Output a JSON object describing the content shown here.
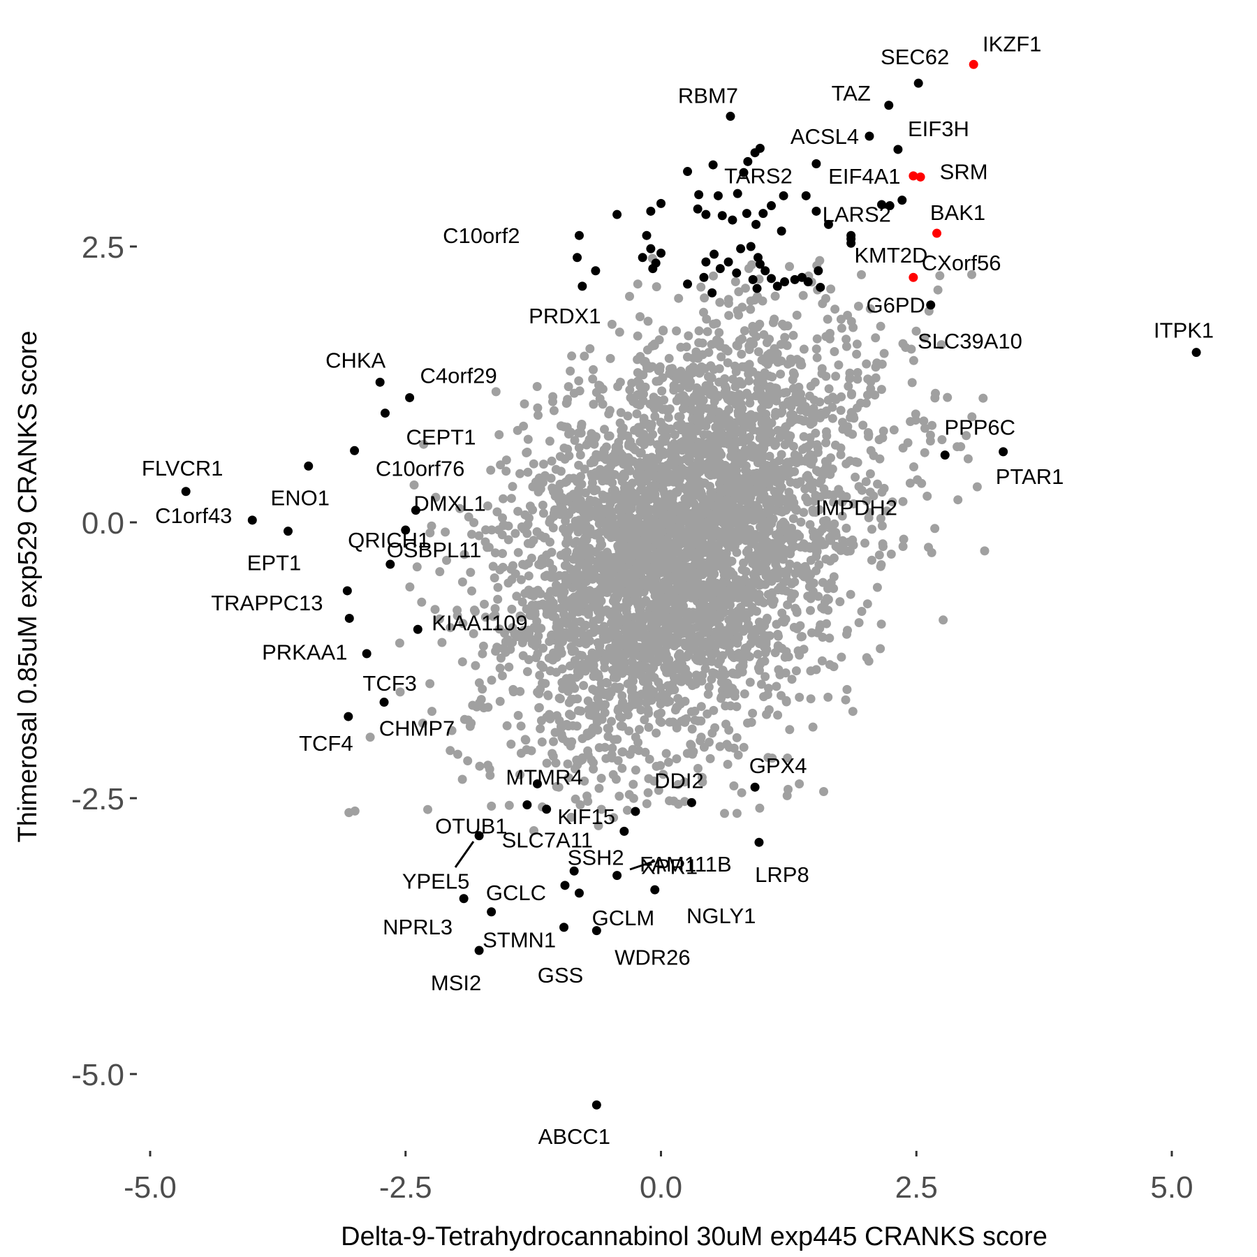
{
  "chart_data": {
    "type": "scatter",
    "title": "",
    "xlabel": "Delta-9-Tetrahydrocannabinol 30uM exp445 CRANKS score",
    "ylabel": "Thimerosal 0.85uM exp529 CRANKS score",
    "xlim": [
      -5.1,
      5.4
    ],
    "ylim": [
      -5.7,
      3.6
    ],
    "xticks": [
      -5.0,
      -2.5,
      0.0,
      2.5,
      5.0
    ],
    "xtick_labels": [
      "-5.0",
      "-2.5",
      "0.0",
      "2.5",
      "5.0"
    ],
    "yticks": [
      2.5,
      0.0,
      -2.5,
      -5.0
    ],
    "ytick_labels": [
      "2.5",
      "0.0",
      "-2.5",
      "-5.0"
    ],
    "grid": false,
    "legend": "none",
    "colors": {
      "background": "#gray-cloud",
      "cloud": "#a0a0a0",
      "highlight": "#000000",
      "special": "#ff0000",
      "tick_text": "#4d4d4d"
    },
    "labeled_points": [
      {
        "label": "IKZF1",
        "x": 3.06,
        "y": 4.15,
        "color": "#ff0000"
      },
      {
        "label": "SEC62",
        "x": 2.52,
        "y": 3.98,
        "color": "#000000"
      },
      {
        "label": "TAZ",
        "x": 2.23,
        "y": 3.78,
        "color": "#000000"
      },
      {
        "label": "RBM7",
        "x": 0.68,
        "y": 3.68,
        "color": "#000000"
      },
      {
        "label": "ACSL4",
        "x": 2.04,
        "y": 3.5,
        "color": "#000000"
      },
      {
        "label": "EIF3H",
        "x": 2.32,
        "y": 3.38,
        "color": "#000000"
      },
      {
        "label": "SRM",
        "x": 2.54,
        "y": 3.13,
        "color": "#ff0000"
      },
      {
        "label": "EIF4A1",
        "x": 2.47,
        "y": 3.14,
        "color": "#ff0000"
      },
      {
        "label": "TARS2",
        "x": 1.52,
        "y": 3.25,
        "color": "#000000"
      },
      {
        "label": "LARS2",
        "x": 2.36,
        "y": 2.92,
        "color": "#000000"
      },
      {
        "label": "BAK1",
        "x": 2.7,
        "y": 2.62,
        "color": "#ff0000"
      },
      {
        "label": "CXorf56",
        "x": 1.86,
        "y": 2.57,
        "color": "#000000"
      },
      {
        "label": "KMT2D",
        "x": 2.47,
        "y": 2.22,
        "color": "#ff0000"
      },
      {
        "label": "C10orf2",
        "x": -0.8,
        "y": 2.6,
        "color": "#000000"
      },
      {
        "label": "G6PD",
        "x": 2.64,
        "y": 1.97,
        "color": "#000000"
      },
      {
        "label": "PRDX1",
        "x": -0.77,
        "y": 2.14,
        "color": "#000000"
      },
      {
        "label": "SLC39A10",
        "x": 2.45,
        "y": 1.57,
        "color": "#a0a0a0"
      },
      {
        "label": "ITPK1",
        "x": 5.24,
        "y": 1.54,
        "color": "#000000"
      },
      {
        "label": "CHKA",
        "x": -2.75,
        "y": 1.27,
        "color": "#000000"
      },
      {
        "label": "C4orf29",
        "x": -2.46,
        "y": 1.13,
        "color": "#000000"
      },
      {
        "label": "CEPT1",
        "x": -2.7,
        "y": 0.99,
        "color": "#000000"
      },
      {
        "label": "PPP6C",
        "x": 2.78,
        "y": 0.61,
        "color": "#000000"
      },
      {
        "label": "PTAR1",
        "x": 3.35,
        "y": 0.64,
        "color": "#000000"
      },
      {
        "label": "IMPDH2",
        "x": 2.05,
        "y": 0.44,
        "color": "#a0a0a0"
      },
      {
        "label": "C10orf76",
        "x": -3.0,
        "y": 0.65,
        "color": "#000000"
      },
      {
        "label": "FLVCR1",
        "x": -4.65,
        "y": 0.28,
        "color": "#000000"
      },
      {
        "label": "ENO1",
        "x": -3.45,
        "y": 0.51,
        "color": "#000000"
      },
      {
        "label": "C1orf43",
        "x": -4.0,
        "y": 0.02,
        "color": "#000000"
      },
      {
        "label": "EPT1",
        "x": -3.65,
        "y": -0.08,
        "color": "#000000"
      },
      {
        "label": "DMXL1",
        "x": -2.4,
        "y": 0.11,
        "color": "#000000"
      },
      {
        "label": "QRICH1",
        "x": -2.5,
        "y": -0.07,
        "color": "#000000"
      },
      {
        "label": "OSBPL11",
        "x": -2.65,
        "y": -0.38,
        "color": "#000000"
      },
      {
        "label": "TRAPPC13",
        "x": -3.07,
        "y": -0.62,
        "color": "#000000"
      },
      {
        "label": "PRKAA1",
        "x": -3.05,
        "y": -0.87,
        "color": "#000000"
      },
      {
        "label": "KIAA1109",
        "x": -2.38,
        "y": -0.97,
        "color": "#000000"
      },
      {
        "label": "TCF3",
        "x": -2.88,
        "y": -1.19,
        "color": "#000000"
      },
      {
        "label": "CHMP7",
        "x": -2.71,
        "y": -1.63,
        "color": "#000000"
      },
      {
        "label": "TCF4",
        "x": -3.06,
        "y": -1.76,
        "color": "#000000"
      },
      {
        "label": "MTMR4",
        "x": -1.21,
        "y": -2.37,
        "color": "#000000"
      },
      {
        "label": "GPX4",
        "x": 0.92,
        "y": -2.4,
        "color": "#000000"
      },
      {
        "label": "DDI2",
        "x": 0.3,
        "y": -2.54,
        "color": "#000000"
      },
      {
        "label": "OTUB1",
        "x": -1.31,
        "y": -2.56,
        "color": "#000000"
      },
      {
        "label": "KIF15",
        "x": -1.12,
        "y": -2.6,
        "color": "#000000"
      },
      {
        "label": "FAM111B",
        "x": -0.25,
        "y": -2.62,
        "color": "#000000"
      },
      {
        "label": "SLC7A11",
        "x": -0.36,
        "y": -2.8,
        "color": "#000000"
      },
      {
        "label": "LRP8",
        "x": 0.96,
        "y": -2.9,
        "color": "#000000"
      },
      {
        "label": "YPEL5",
        "x": -1.78,
        "y": -2.84,
        "color": "#000000"
      },
      {
        "label": "SSH2",
        "x": -0.85,
        "y": -3.16,
        "color": "#000000"
      },
      {
        "label": "XPR1",
        "x": -0.43,
        "y": -3.2,
        "color": "#000000"
      },
      {
        "label": "GCLC",
        "x": -0.94,
        "y": -3.29,
        "color": "#000000"
      },
      {
        "label": "GCLM",
        "x": -0.8,
        "y": -3.36,
        "color": "#000000"
      },
      {
        "label": "NGLY1",
        "x": -0.06,
        "y": -3.33,
        "color": "#000000"
      },
      {
        "label": "NPRL3",
        "x": -1.93,
        "y": -3.41,
        "color": "#000000"
      },
      {
        "label": "STMN1",
        "x": -1.66,
        "y": -3.53,
        "color": "#000000"
      },
      {
        "label": "GSS",
        "x": -0.95,
        "y": -3.67,
        "color": "#000000"
      },
      {
        "label": "WDR26",
        "x": -0.63,
        "y": -3.7,
        "color": "#000000"
      },
      {
        "label": "MSI2",
        "x": -1.78,
        "y": -3.88,
        "color": "#000000"
      },
      {
        "label": "ABCC1",
        "x": -0.63,
        "y": -5.28,
        "color": "#000000"
      }
    ],
    "unlabeled_black_points": [
      [
        0.26,
        3.18
      ],
      [
        0.51,
        3.24
      ],
      [
        0.85,
        3.27
      ],
      [
        0.92,
        3.35
      ],
      [
        0.97,
        3.39
      ],
      [
        0.81,
        3.17
      ],
      [
        0.37,
        2.97
      ],
      [
        0.56,
        2.96
      ],
      [
        0.75,
        2.98
      ],
      [
        1.2,
        2.96
      ],
      [
        1.42,
        2.96
      ],
      [
        1.08,
        2.87
      ],
      [
        0.0,
        2.89
      ],
      [
        -0.1,
        2.82
      ],
      [
        -0.43,
        2.79
      ],
      [
        0.36,
        2.84
      ],
      [
        0.44,
        2.79
      ],
      [
        0.6,
        2.78
      ],
      [
        0.7,
        2.74
      ],
      [
        0.84,
        2.8
      ],
      [
        0.93,
        2.7
      ],
      [
        1.0,
        2.8
      ],
      [
        1.18,
        2.64
      ],
      [
        1.52,
        2.82
      ],
      [
        1.64,
        2.7
      ],
      [
        2.16,
        2.88
      ],
      [
        1.86,
        2.53
      ],
      [
        -0.14,
        2.6
      ],
      [
        -0.1,
        2.48
      ],
      [
        0.0,
        2.44
      ],
      [
        -0.18,
        2.4
      ],
      [
        -0.08,
        2.3
      ],
      [
        0.44,
        2.36
      ],
      [
        0.52,
        2.43
      ],
      [
        0.66,
        2.36
      ],
      [
        0.78,
        2.48
      ],
      [
        0.88,
        2.5
      ],
      [
        0.95,
        2.4
      ],
      [
        0.97,
        2.34
      ],
      [
        1.02,
        2.28
      ],
      [
        0.9,
        2.2
      ],
      [
        0.74,
        2.26
      ],
      [
        0.58,
        2.3
      ],
      [
        0.42,
        2.22
      ],
      [
        0.26,
        2.16
      ],
      [
        0.5,
        2.08
      ],
      [
        0.94,
        2.12
      ],
      [
        1.08,
        2.21
      ],
      [
        1.14,
        2.14
      ],
      [
        1.21,
        2.18
      ],
      [
        1.31,
        2.2
      ],
      [
        1.38,
        2.22
      ],
      [
        1.44,
        2.18
      ],
      [
        1.54,
        2.28
      ],
      [
        1.56,
        2.13
      ],
      [
        -0.64,
        2.28
      ],
      [
        -0.05,
        2.35
      ],
      [
        1.86,
        2.6
      ],
      [
        2.24,
        2.87
      ],
      [
        -0.82,
        2.4
      ]
    ],
    "cloud": {
      "center_x": 0.2,
      "center_y": -0.2,
      "sd_x": 0.9,
      "sd_y": 1.0,
      "point_count": 4200,
      "color": "#a0a0a0"
    }
  }
}
